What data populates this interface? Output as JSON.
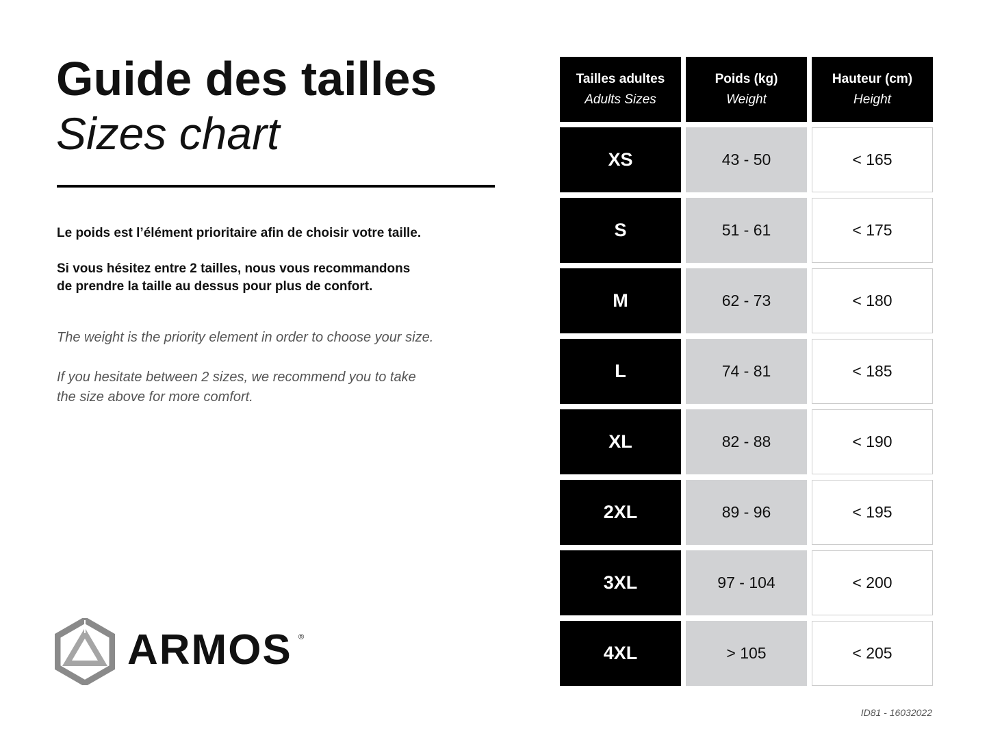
{
  "title": "Guide des tailles",
  "subtitle": "Sizes chart",
  "paragraphs_fr": [
    "Le poids est l’élément prioritaire afin de choisir votre taille.",
    "Si vous hésitez entre 2 tailles, nous vous recommandons",
    "de prendre la taille au dessus pour plus de confort."
  ],
  "paragraphs_en": [
    "The weight is the priority element in order to choose your size.",
    "If you hesitate between 2 sizes, we recommend you to take",
    "the size above for more comfort."
  ],
  "table": {
    "headers": [
      {
        "fr": "Tailles adultes",
        "en": "Adults Sizes"
      },
      {
        "fr": "Poids (kg)",
        "en": "Weight"
      },
      {
        "fr": "Hauteur (cm)",
        "en": "Height"
      }
    ],
    "rows": [
      {
        "size": "XS",
        "weight": "43 - 50",
        "height": "< 165"
      },
      {
        "size": "S",
        "weight": "51 - 61",
        "height": "< 175"
      },
      {
        "size": "M",
        "weight": "62 - 73",
        "height": "< 180"
      },
      {
        "size": "L",
        "weight": "74 - 81",
        "height": "< 185"
      },
      {
        "size": "XL",
        "weight": "82 - 88",
        "height": "< 190"
      },
      {
        "size": "2XL",
        "weight": "89 - 96",
        "height": "< 195"
      },
      {
        "size": "3XL",
        "weight": "97 - 104",
        "height": "< 200"
      },
      {
        "size": "4XL",
        "weight": "> 105",
        "height": "< 205"
      }
    ]
  },
  "brand": {
    "name": "ARMOS",
    "mark": "®",
    "logo_icon": "hexagon-triangle-logo"
  },
  "footer_id": "ID81 - 16032022",
  "colors": {
    "header_bg": "#000000",
    "weight_bg": "#d1d2d4",
    "height_bg": "#ffffff"
  }
}
